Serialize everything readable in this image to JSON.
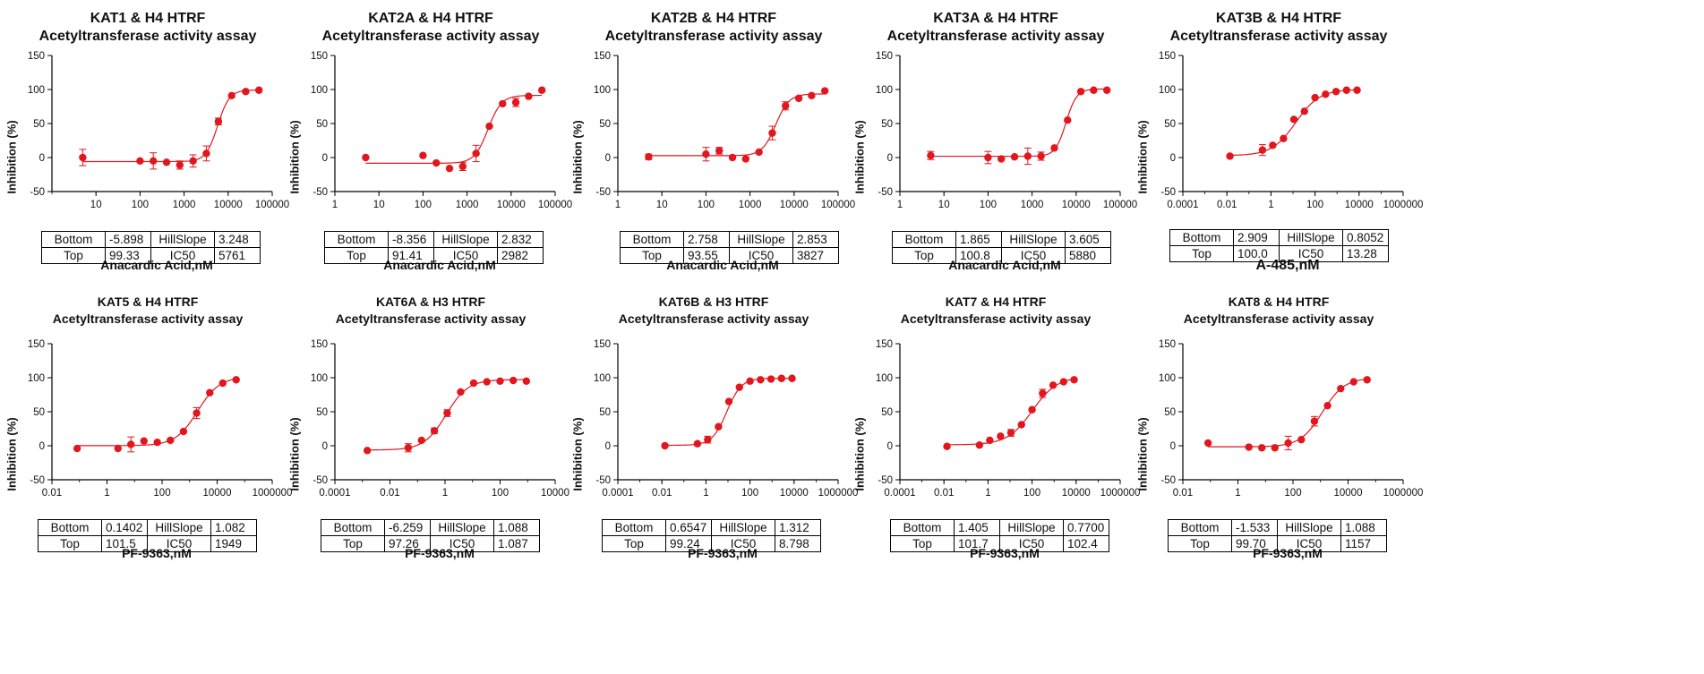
{
  "colors": {
    "series": "#e3161d",
    "axis": "#000000"
  },
  "ylabel": "Inhibition (%)",
  "yticks": [
    "150",
    "100",
    "50",
    "0",
    "-50"
  ],
  "param_labels": {
    "bottom": "Bottom",
    "top": "Top",
    "hillslope": "HillSlope",
    "ic50": "IC50"
  },
  "chart_data": [
    {
      "type": "scatter",
      "title": "KAT1 & H4 HTRF",
      "subtitle": "Acetyltransferase activity assay",
      "xlabel": "Anacardic Acid,nM",
      "ylabel": "Inhibition (%)",
      "xscale": "log",
      "xlim": [
        1,
        100000
      ],
      "ylim": [
        -50,
        150
      ],
      "xticks": [
        "10",
        "100",
        "1000",
        "10000",
        "100000"
      ],
      "x": [
        5,
        100,
        200,
        400,
        800,
        1600,
        3200,
        6000,
        12000,
        25000,
        50000
      ],
      "y": [
        0,
        -5,
        -5,
        -7,
        -11,
        -5,
        6,
        53,
        91,
        97,
        99
      ],
      "err": [
        12,
        0,
        12,
        0,
        6,
        9,
        11,
        5,
        0,
        0,
        0
      ],
      "fit": {
        "bottom": "-5.898",
        "top": "99.33",
        "hillslope": "3.248",
        "ic50": "5761"
      }
    },
    {
      "type": "scatter",
      "title": "KAT2A & H4 HTRF",
      "subtitle": "Acetyltransferase activity assay",
      "xlabel": "Anacardic Acid,nM",
      "ylabel": "Inhibition (%)",
      "xscale": "log",
      "xlim": [
        1,
        100000
      ],
      "ylim": [
        -50,
        150
      ],
      "xticks": [
        "1",
        "10",
        "100",
        "1000",
        "10000",
        "100000"
      ],
      "x": [
        5,
        100,
        200,
        400,
        800,
        1600,
        3200,
        6400,
        12800,
        25000,
        50000
      ],
      "y": [
        0,
        3,
        -8,
        -16,
        -13,
        6,
        46,
        79,
        81,
        90,
        99
      ],
      "err": [
        0,
        0,
        0,
        0,
        6,
        12,
        0,
        0,
        6,
        0,
        0
      ],
      "fit": {
        "bottom": "-8.356",
        "top": "91.41",
        "hillslope": "2.832",
        "ic50": "2982"
      }
    },
    {
      "type": "scatter",
      "title": "KAT2B & H4 HTRF",
      "subtitle": "Acetyltransferase activity assay",
      "xlabel": "Anacardic Acid,nM",
      "ylabel": "Inhibition (%)",
      "xscale": "log",
      "xlim": [
        1,
        100000
      ],
      "ylim": [
        -50,
        150
      ],
      "xticks": [
        "1",
        "10",
        "100",
        "1000",
        "10000",
        "100000"
      ],
      "x": [
        5,
        100,
        200,
        400,
        800,
        1600,
        3200,
        6400,
        12800,
        25000,
        50000
      ],
      "y": [
        1,
        5,
        10,
        0,
        -2,
        8,
        36,
        76,
        87,
        91,
        98
      ],
      "err": [
        4,
        10,
        5,
        0,
        0,
        0,
        10,
        6,
        0,
        0,
        0
      ],
      "fit": {
        "bottom": "2.758",
        "top": "93.55",
        "hillslope": "2.853",
        "ic50": "3827"
      }
    },
    {
      "type": "scatter",
      "title": "KAT3A & H4 HTRF",
      "subtitle": "Acetyltransferase activity assay",
      "xlabel": "Anacardic Acid,nM",
      "ylabel": "Inhibition (%)",
      "xscale": "log",
      "xlim": [
        1,
        100000
      ],
      "ylim": [
        -50,
        150
      ],
      "xticks": [
        "1",
        "10",
        "100",
        "1000",
        "10000",
        "100000"
      ],
      "x": [
        5,
        100,
        200,
        400,
        800,
        1600,
        3200,
        6400,
        12800,
        25000,
        50000
      ],
      "y": [
        3,
        0,
        -2,
        1,
        2,
        2,
        14,
        55,
        97,
        99,
        99
      ],
      "err": [
        6,
        9,
        0,
        0,
        12,
        6,
        0,
        0,
        0,
        0,
        0
      ],
      "fit": {
        "bottom": "1.865",
        "top": "100.8",
        "hillslope": "3.605",
        "ic50": "5880"
      }
    },
    {
      "type": "scatter",
      "title": "KAT3B & H4 HTRF",
      "subtitle": "Acetyltransferase activity assay",
      "xlabel": "A-485,nM",
      "ylabel": "Inhibition (%)",
      "xscale": "log",
      "xlim": [
        0.0001,
        1000000
      ],
      "ylim": [
        -50,
        150
      ],
      "xticks": [
        "0.0001",
        "0.01",
        "1",
        "100",
        "10000",
        "1000000"
      ],
      "x": [
        0.0137,
        0.41,
        1.2,
        3.7,
        11,
        33,
        100,
        300,
        900,
        2700,
        8100
      ],
      "y": [
        2,
        11,
        18,
        28,
        56,
        68,
        88,
        93,
        97,
        99,
        99
      ],
      "err": [
        0,
        8,
        0,
        0,
        0,
        0,
        0,
        0,
        0,
        0,
        0
      ],
      "fit": {
        "bottom": "2.909",
        "top": "100.0",
        "hillslope": "0.8052",
        "ic50": "13.28"
      }
    },
    {
      "type": "scatter",
      "title": "KAT5 & H4 HTRF",
      "subtitle": "Acetyltransferase activity assay",
      "xlabel": "PF-9363,nM",
      "ylabel": "Inhibition (%)",
      "xscale": "log",
      "xlim": [
        0.01,
        1000000
      ],
      "ylim": [
        -50,
        150
      ],
      "xticks": [
        "0.01",
        "1",
        "100",
        "10000",
        "1000000"
      ],
      "x": [
        0.0823,
        2.5,
        7.4,
        22,
        67,
        200,
        600,
        1800,
        5400,
        16000,
        49000
      ],
      "y": [
        -4,
        -4,
        2,
        7,
        5,
        8,
        21,
        48,
        78,
        92,
        97
      ],
      "err": [
        0,
        0,
        11,
        0,
        0,
        0,
        0,
        8,
        0,
        0,
        0
      ],
      "fit": {
        "bottom": "0.1402",
        "top": "101.5",
        "hillslope": "1.082",
        "ic50": "1949"
      }
    },
    {
      "type": "scatter",
      "title": "KAT6A & H3 HTRF",
      "subtitle": "Acetyltransferase activity assay",
      "xlabel": "PF-9363,nM",
      "ylabel": "Inhibition (%)",
      "xscale": "log",
      "xlim": [
        0.0001,
        10000
      ],
      "ylim": [
        -50,
        150
      ],
      "xticks": [
        "0.0001",
        "0.01",
        "1",
        "100",
        "10000"
      ],
      "x": [
        0.0015,
        0.046,
        0.14,
        0.41,
        1.2,
        3.7,
        11,
        33,
        100,
        300,
        900
      ],
      "y": [
        -7,
        -3,
        8,
        22,
        48,
        79,
        92,
        94,
        95,
        96,
        95
      ],
      "err": [
        0,
        6,
        0,
        4,
        5,
        0,
        0,
        0,
        0,
        0,
        0
      ],
      "fit": {
        "bottom": "-6.259",
        "top": "97.26",
        "hillslope": "1.088",
        "ic50": "1.087"
      }
    },
    {
      "type": "scatter",
      "title": "KAT6B & H3 HTRF",
      "subtitle": "Acetyltransferase activity assay",
      "xlabel": "PF-9363,nM",
      "ylabel": "Inhibition (%)",
      "xscale": "log",
      "xlim": [
        0.0001,
        1000000
      ],
      "ylim": [
        -50,
        150
      ],
      "xticks": [
        "0.0001",
        "0.01",
        "1",
        "100",
        "10000",
        "1000000"
      ],
      "x": [
        0.0137,
        0.41,
        1.2,
        3.7,
        11,
        33,
        100,
        300,
        900,
        2700,
        8100
      ],
      "y": [
        0,
        3,
        9,
        28,
        65,
        86,
        95,
        97,
        98,
        99,
        99
      ],
      "err": [
        0,
        0,
        5,
        0,
        0,
        0,
        0,
        0,
        0,
        0,
        0
      ],
      "fit": {
        "bottom": "0.6547",
        "top": "99.24",
        "hillslope": "1.312",
        "ic50": "8.798"
      }
    },
    {
      "type": "scatter",
      "title": "KAT7 & H4 HTRF",
      "subtitle": "Acetyltransferase activity assay",
      "xlabel": "PF-9363,nM",
      "ylabel": "Inhibition (%)",
      "xscale": "log",
      "xlim": [
        0.0001,
        1000000
      ],
      "ylim": [
        -50,
        150
      ],
      "xticks": [
        "0.0001",
        "0.01",
        "1",
        "100",
        "10000",
        "1000000"
      ],
      "x": [
        0.0137,
        0.41,
        1.2,
        3.7,
        11,
        33,
        100,
        300,
        900,
        2700,
        8100
      ],
      "y": [
        -1,
        1,
        8,
        14,
        19,
        31,
        53,
        77,
        89,
        94,
        97
      ],
      "err": [
        0,
        0,
        0,
        0,
        5,
        0,
        0,
        6,
        0,
        0,
        0
      ],
      "fit": {
        "bottom": "1.405",
        "top": "101.7",
        "hillslope": "0.7700",
        "ic50": "102.4"
      }
    },
    {
      "type": "scatter",
      "title": "KAT8 & H4 HTRF",
      "subtitle": "Acetyltransferase activity assay",
      "xlabel": "PF-9363,nM",
      "ylabel": "Inhibition (%)",
      "xscale": "log",
      "xlim": [
        0.01,
        1000000
      ],
      "ylim": [
        -50,
        150
      ],
      "xticks": [
        "0.01",
        "1",
        "100",
        "10000",
        "1000000"
      ],
      "x": [
        0.0823,
        2.5,
        7.4,
        22,
        67,
        200,
        600,
        1800,
        5400,
        16000,
        49000
      ],
      "y": [
        4,
        -2,
        -3,
        -3,
        4,
        9,
        36,
        59,
        84,
        94,
        97
      ],
      "err": [
        0,
        0,
        0,
        0,
        10,
        0,
        7,
        0,
        0,
        0,
        0
      ],
      "fit": {
        "bottom": "-1.533",
        "top": "99.70",
        "hillslope": "1.088",
        "ic50": "1157"
      }
    }
  ]
}
